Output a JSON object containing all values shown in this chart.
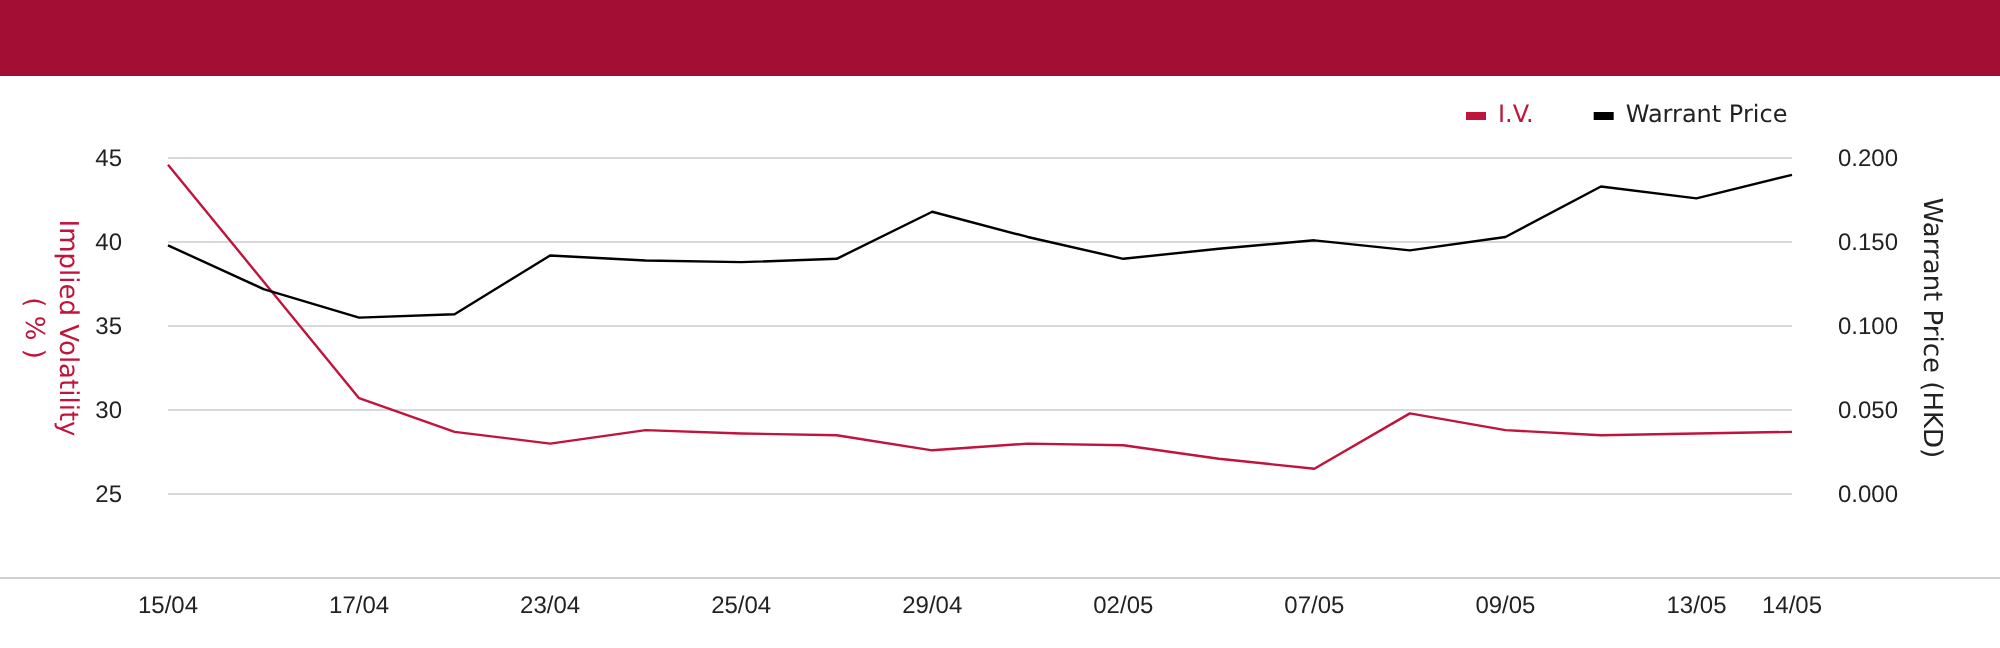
{
  "chart_data": {
    "type": "line",
    "ylabel": "Implied Volatility\n( % )",
    "y2label": "Warrant Price (HKD)",
    "categories": [
      "15/04",
      null,
      "17/04",
      null,
      "23/04",
      null,
      "25/04",
      null,
      "29/04",
      null,
      "02/05",
      null,
      "07/05",
      null,
      "09/05",
      null,
      "13/05",
      "14/05"
    ],
    "series": [
      {
        "name": "I.V.",
        "color": "#c0143c",
        "values": [
          44.6,
          null,
          30.7,
          28.7,
          28.0,
          28.8,
          28.6,
          28.5,
          27.6,
          28.0,
          27.9,
          27.1,
          26.5,
          29.8,
          28.8,
          28.5,
          28.6,
          28.7
        ]
      },
      {
        "name": "Warrant Price",
        "color": "#000000",
        "axis": "y2",
        "values": [
          0.148,
          0.122,
          0.105,
          0.107,
          0.142,
          0.139,
          0.138,
          0.14,
          0.168,
          0.153,
          0.14,
          0.146,
          0.151,
          0.145,
          0.153,
          0.183,
          0.176,
          0.19
        ]
      }
    ],
    "ylim": [
      20,
      45
    ],
    "yticks": [
      25,
      30,
      35,
      40,
      45
    ],
    "y2lim": [
      -0.05,
      0.2
    ],
    "y2ticks": [
      {
        "value": 0,
        "label": "0.000"
      },
      {
        "value": 0.05,
        "label": "0.050"
      },
      {
        "value": 0.1,
        "label": "0.100"
      },
      {
        "value": 0.15,
        "label": "0.150"
      },
      {
        "value": 0.2,
        "label": "0.200"
      }
    ],
    "grid": "y",
    "legend": "top right",
    "marker": "none",
    "line_style": "solid"
  }
}
